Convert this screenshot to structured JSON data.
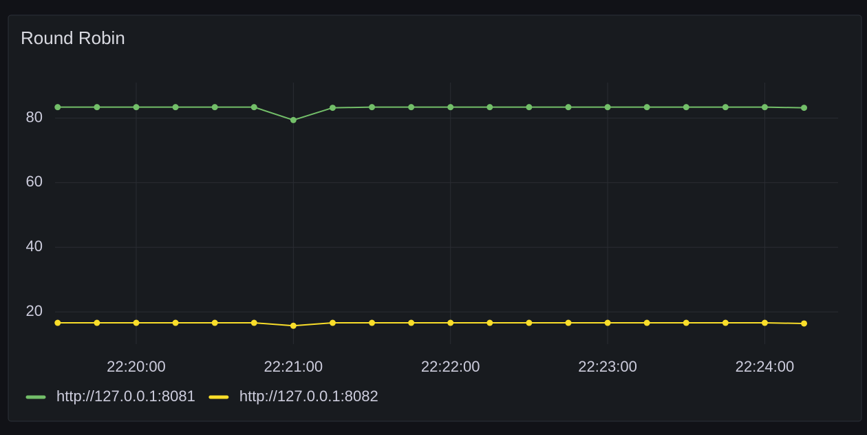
{
  "chart_data": {
    "type": "line",
    "title": "Round Robin",
    "x": [
      "22:19:30",
      "22:19:45",
      "22:20:00",
      "22:20:15",
      "22:20:30",
      "22:20:45",
      "22:21:00",
      "22:21:15",
      "22:21:30",
      "22:21:45",
      "22:22:00",
      "22:22:15",
      "22:22:30",
      "22:22:45",
      "22:23:00",
      "22:23:15",
      "22:23:30",
      "22:23:45",
      "22:24:00",
      "22:24:15"
    ],
    "series": [
      {
        "name": "http://127.0.0.1:8081",
        "color": "#73bf69",
        "values": [
          83.4,
          83.4,
          83.4,
          83.4,
          83.4,
          83.4,
          79.4,
          83.2,
          83.4,
          83.4,
          83.4,
          83.4,
          83.4,
          83.4,
          83.4,
          83.4,
          83.4,
          83.4,
          83.4,
          83.2
        ]
      },
      {
        "name": "http://127.0.0.1:8082",
        "color": "#fade2a",
        "values": [
          16.6,
          16.6,
          16.6,
          16.6,
          16.6,
          16.6,
          15.7,
          16.6,
          16.6,
          16.6,
          16.6,
          16.6,
          16.6,
          16.6,
          16.6,
          16.6,
          16.6,
          16.6,
          16.6,
          16.4
        ]
      }
    ],
    "xlim": [
      "22:19:29",
      "22:24:28"
    ],
    "xticks": [
      "22:20:00",
      "22:21:00",
      "22:22:00",
      "22:23:00",
      "22:24:00"
    ],
    "ylim": [
      10,
      91
    ],
    "yticks": [
      20,
      40,
      60,
      80
    ],
    "grid": true,
    "legend": "bottom-left"
  }
}
